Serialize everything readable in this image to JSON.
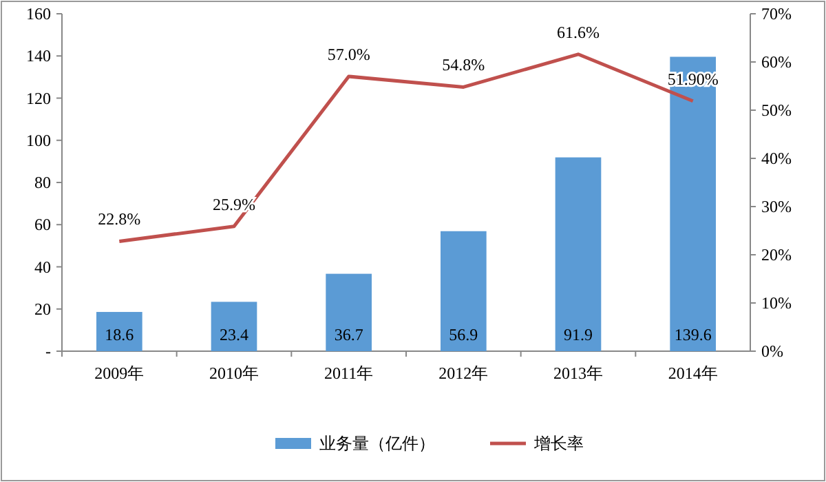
{
  "chart_data": {
    "type": "bar",
    "categories": [
      "2009年",
      "2010年",
      "2011年",
      "2012年",
      "2013年",
      "2014年"
    ],
    "series": [
      {
        "name": "业务量（亿件）",
        "color": "#5b9bd5",
        "values": [
          18.6,
          23.4,
          36.7,
          56.9,
          91.9,
          139.6
        ],
        "value_labels": [
          "18.6",
          "23.4",
          "36.7",
          "56.9",
          "91.9",
          "139.6"
        ]
      },
      {
        "name": "增长率",
        "type": "line",
        "axis": "y2",
        "color": "#c0504d",
        "values": [
          22.8,
          25.9,
          57.0,
          54.8,
          61.6,
          51.9
        ],
        "value_labels": [
          "22.8%",
          "25.9%",
          "57.0%",
          "54.8%",
          "61.6%",
          "51.90%"
        ]
      }
    ],
    "ylim": [
      0,
      160
    ],
    "yticks": [
      {
        "value": 0,
        "label": "-"
      },
      20,
      40,
      60,
      80,
      100,
      120,
      140,
      160
    ],
    "y2lim": [
      0,
      70
    ],
    "y2ticks": [
      {
        "value": 0,
        "label": "0%"
      },
      {
        "value": 10,
        "label": "10%"
      },
      {
        "value": 20,
        "label": "20%"
      },
      {
        "value": 30,
        "label": "30%"
      },
      {
        "value": 40,
        "label": "40%"
      },
      {
        "value": 50,
        "label": "50%"
      },
      {
        "value": 60,
        "label": "60%"
      },
      {
        "value": 70,
        "label": "70%"
      }
    ],
    "legend": "bottom"
  }
}
